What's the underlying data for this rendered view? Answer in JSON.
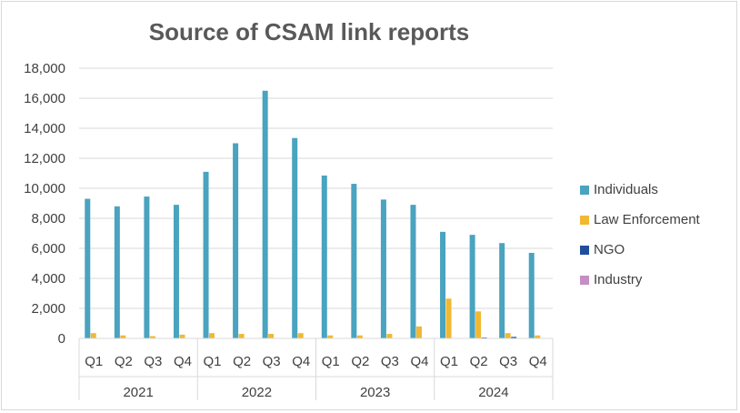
{
  "chart_data": {
    "type": "bar",
    "title": "Source of CSAM link reports",
    "xlabel": "",
    "ylabel": "",
    "ylim": [
      0,
      18000
    ],
    "yticks": [
      0,
      2000,
      4000,
      6000,
      8000,
      10000,
      12000,
      14000,
      16000,
      18000
    ],
    "ytick_labels": [
      "0",
      "2,000",
      "4,000",
      "6,000",
      "8,000",
      "10,000",
      "12,000",
      "14,000",
      "16,000",
      "18,000"
    ],
    "grid": "horizontal",
    "legend_position": "right",
    "groups": [
      {
        "label": "2021",
        "quarters": [
          "Q1",
          "Q2",
          "Q3",
          "Q4"
        ]
      },
      {
        "label": "2022",
        "quarters": [
          "Q1",
          "Q2",
          "Q3",
          "Q4"
        ]
      },
      {
        "label": "2023",
        "quarters": [
          "Q1",
          "Q2",
          "Q3",
          "Q4"
        ]
      },
      {
        "label": "2024",
        "quarters": [
          "Q1",
          "Q2",
          "Q3",
          "Q4"
        ]
      }
    ],
    "categories": [
      "2021 Q1",
      "2021 Q2",
      "2021 Q3",
      "2021 Q4",
      "2022 Q1",
      "2022 Q2",
      "2022 Q3",
      "2022 Q4",
      "2023 Q1",
      "2023 Q2",
      "2023 Q3",
      "2023 Q4",
      "2024 Q1",
      "2024 Q2",
      "2024 Q3",
      "2024 Q4"
    ],
    "series": [
      {
        "name": "Individuals",
        "color": "#4aa3bf",
        "values": [
          9300,
          8800,
          9450,
          8900,
          11100,
          13000,
          16500,
          13350,
          10850,
          10300,
          9250,
          8900,
          7100,
          6900,
          6350,
          5700
        ]
      },
      {
        "name": "Law Enforcement",
        "color": "#f0b833",
        "values": [
          350,
          200,
          150,
          250,
          350,
          300,
          300,
          350,
          200,
          200,
          300,
          800,
          2650,
          1800,
          350,
          200
        ]
      },
      {
        "name": "NGO",
        "color": "#1f4e9e",
        "values": [
          0,
          0,
          0,
          0,
          0,
          0,
          0,
          0,
          0,
          0,
          0,
          0,
          0,
          60,
          100,
          0
        ]
      },
      {
        "name": "Industry",
        "color": "#c58ec4",
        "values": [
          0,
          0,
          0,
          0,
          0,
          0,
          0,
          0,
          0,
          0,
          0,
          0,
          0,
          0,
          0,
          0
        ]
      }
    ]
  }
}
